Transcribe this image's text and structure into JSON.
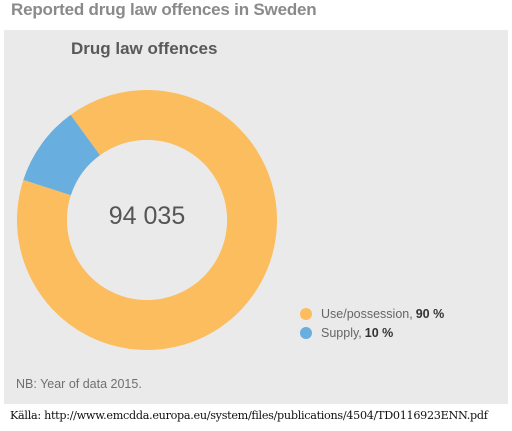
{
  "page_title": "Reported drug law offences in Sweden",
  "source_text": "Källa: http://www.emcdda.europa.eu/system/files/publications/4504/TD0116923ENN.pdf",
  "panel": {
    "note": "NB: Year of data 2015.",
    "total_text": "94 035"
  },
  "chart_data": {
    "type": "pie",
    "title": "Drug law offences",
    "total": 94035,
    "donut": true,
    "legend_position": "bottom-right",
    "slices": [
      {
        "label": "Use/possession,",
        "value": 90,
        "value_text": "90 %",
        "color": "#FBBD5E"
      },
      {
        "label": "Supply,",
        "value": 10,
        "value_text": "10 %",
        "color": "#68AEDF"
      }
    ]
  }
}
